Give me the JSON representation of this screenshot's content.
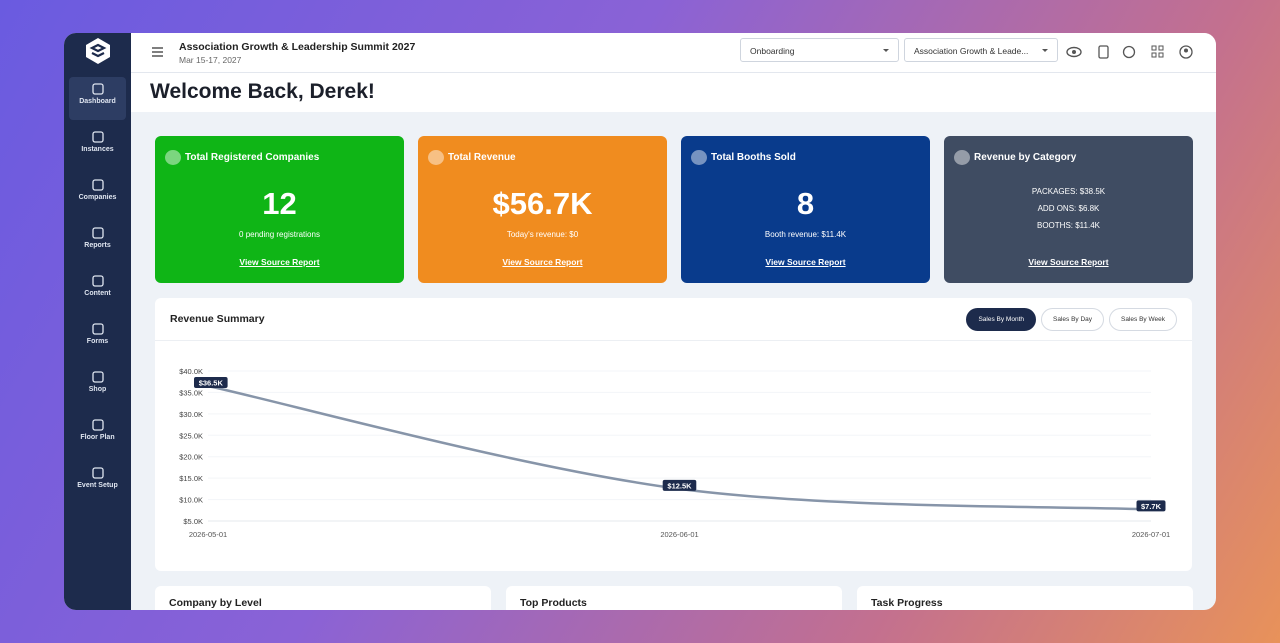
{
  "sidebar": {
    "items": [
      "Dashboard",
      "Instances",
      "Companies",
      "Reports",
      "Content",
      "Forms",
      "Shop",
      "Floor Plan",
      "Event Setup"
    ]
  },
  "header": {
    "event_title": "Association Growth & Leadership Summit 2027",
    "event_dates": "Mar 15-17, 2027",
    "dropdowns": [
      "Onboarding",
      "Association Growth & Leade..."
    ]
  },
  "welcome": "Welcome Back, Derek!",
  "cards": [
    {
      "title": "Total Registered Companies",
      "value": "12",
      "subtitle": "0 pending registrations",
      "link": "View Source Report",
      "color": "#0fb516"
    },
    {
      "title": "Total Revenue",
      "value": "$56.7K",
      "subtitle": "Today's revenue: $0",
      "link": "View Source Report",
      "color": "#f08c1f"
    },
    {
      "title": "Total Booths Sold",
      "value": "8",
      "subtitle": "Booth revenue: $11.4K",
      "link": "View Source Report",
      "color": "#093b8c"
    },
    {
      "title": "Revenue by Category",
      "lines": [
        "PACKAGES: $38.5K",
        "ADD ONS: $6.8K",
        "BOOTHS: $11.4K"
      ],
      "link": "View Source Report",
      "color": "#3f4c62"
    }
  ],
  "revenue_buttons": [
    "Sales By Month",
    "Sales By Day",
    "Sales By Week"
  ],
  "chart_data": {
    "type": "line",
    "title": "Revenue Summary",
    "categories": [
      "2026-05-01",
      "2026-06-01",
      "2026-07-01"
    ],
    "series": [
      {
        "color": "#8795a9",
        "values": [
          36500,
          12500,
          7700
        ],
        "value_labels": [
          "$36.5K",
          "$12.5K",
          "$7.7K"
        ]
      }
    ],
    "ylim": [
      5000,
      40000
    ],
    "yticks": [
      {
        "value": 5000,
        "label": "$5.0K"
      },
      {
        "value": 10000,
        "label": "$10.0K"
      },
      {
        "value": 15000,
        "label": "$15.0K"
      },
      {
        "value": 20000,
        "label": "$20.0K"
      },
      {
        "value": 25000,
        "label": "$25.0K"
      },
      {
        "value": 30000,
        "label": "$30.0K"
      },
      {
        "value": 35000,
        "label": "$35.0K"
      },
      {
        "value": 40000,
        "label": "$40.0K"
      }
    ],
    "grid": true
  },
  "panels": [
    "Company by Level",
    "Top Products",
    "Task Progress"
  ]
}
